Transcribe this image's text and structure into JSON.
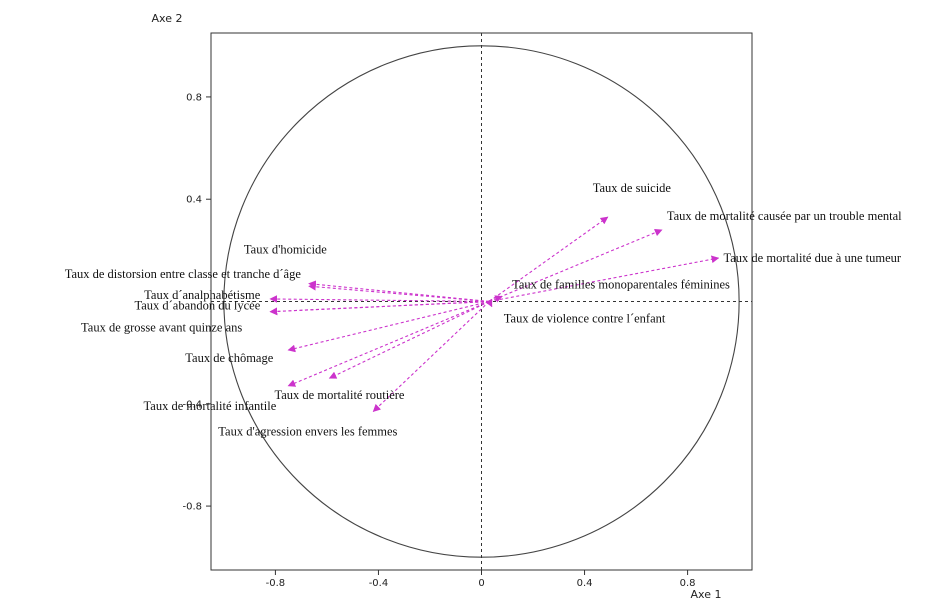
{
  "chart_data": {
    "type": "scatter",
    "subtype": "correlation-circle",
    "xlabel": "Axe 1",
    "ylabel": "Axe 2",
    "xlim": [
      -1.05,
      1.05
    ],
    "ylim": [
      -1.05,
      1.05
    ],
    "xticks": [
      -0.8,
      -0.4,
      0,
      0.4,
      0.8
    ],
    "yticks": [
      -0.8,
      -0.4,
      0.4,
      0.8
    ],
    "xtick_labels": [
      "-0.8",
      "-0.4",
      "0",
      "0.4",
      "0.8"
    ],
    "ytick_labels": [
      "-0.8",
      "-0.4",
      "0.4",
      "0.8"
    ],
    "unit_circle": true,
    "origin": [
      0.03,
      0.0
    ],
    "vector_color": "#cc33cc",
    "vectors": [
      {
        "label": "Taux de suicide",
        "x": 0.49,
        "y": 0.33
      },
      {
        "label": "Taux de mortalité causée par un trouble mental",
        "x": 0.7,
        "y": 0.28
      },
      {
        "label": "Taux de mortalité due à une tumeur",
        "x": 0.92,
        "y": 0.17
      },
      {
        "label": "Taux de familles monoparentales féminines",
        "x": 0.08,
        "y": 0.02
      },
      {
        "label": "Taux de violence contre l´enfant",
        "x": 0.04,
        "y": -0.02
      },
      {
        "label": "Taux d'homicide",
        "x": -0.67,
        "y": 0.07
      },
      {
        "label": "Taux de distorsion entre classe et tranche d´âge",
        "x": -0.67,
        "y": 0.06
      },
      {
        "label": "Taux d´analphabétisme",
        "x": -0.82,
        "y": 0.01
      },
      {
        "label": "Taux d´abandon du lycée",
        "x": -0.82,
        "y": -0.04
      },
      {
        "label": "Taux de grosse avant quinze ans",
        "x": -0.82,
        "y": -0.04
      },
      {
        "label": "Taux de chômage",
        "x": -0.75,
        "y": -0.19
      },
      {
        "label": "Taux de mortalité infantile",
        "x": -0.75,
        "y": -0.33
      },
      {
        "label": "Taux de mortalité routière",
        "x": -0.59,
        "y": -0.3
      },
      {
        "label": "Taux d'agression envers les femmes",
        "x": -0.42,
        "y": -0.43
      }
    ]
  }
}
